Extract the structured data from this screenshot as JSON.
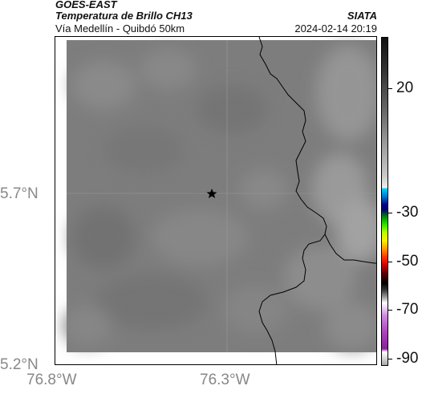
{
  "header": {
    "satellite": "GOES-EAST",
    "product": "Temperatura de Brillo CH13",
    "region": "Vía Medellín - Quibdó 50km",
    "agency": "SIATA",
    "datetime": "2024-02-14 20:19"
  },
  "axes": {
    "lat_labels": [
      "5.7°N",
      "5.2°N"
    ],
    "lon_labels": [
      "76.8°W",
      "76.3°W"
    ]
  },
  "colorbar": {
    "labels": [
      "20",
      "-30",
      "-50",
      "-70",
      "-90"
    ]
  },
  "colors": {
    "land_gray": "#7e7e7e",
    "border_line": "#000000",
    "text_axis": "#888888"
  }
}
